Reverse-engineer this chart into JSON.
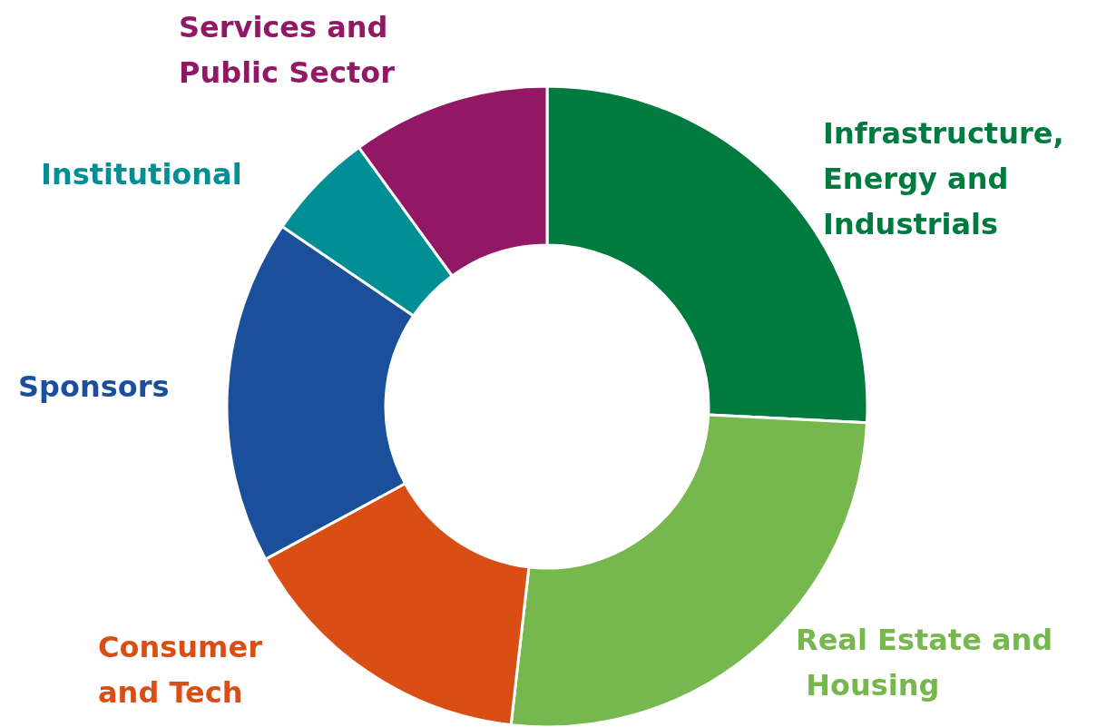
{
  "chart_data": {
    "type": "donut",
    "categories": [
      "Infrastructure, Energy and Industrials",
      "Real Estate and Housing",
      "Consumer and Tech",
      "Sponsors",
      "Institutional",
      "Services and Public Sector"
    ],
    "values": [
      25.8,
      26,
      15.3,
      17.4,
      5.5,
      10
    ],
    "colors": [
      "#007b40",
      "#77b84e",
      "#d94e14",
      "#1a4f9c",
      "#008f94",
      "#921866"
    ],
    "legend": false
  }
}
